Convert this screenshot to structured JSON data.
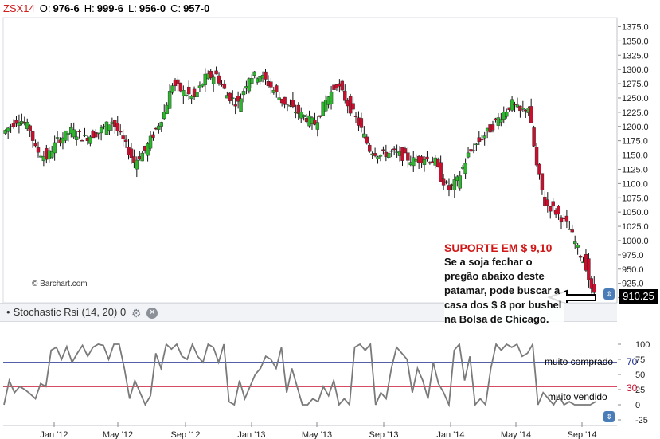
{
  "header": {
    "symbol": "ZSX14",
    "o_label": "O:",
    "o_value": "976-6",
    "h_label": "H:",
    "h_value": "999-6",
    "l_label": "L:",
    "l_value": "956-0",
    "c_label": "C:",
    "c_value": "957-0"
  },
  "oscillator": {
    "title": "Stochastic Rsi (14, 20) 0"
  },
  "watermark": "© Barchart.com",
  "last_price": "910.25",
  "annotation": {
    "title": "SUPORTE EM $ 9,10",
    "body": "Se a soja fechar o pregão abaixo deste patamar, pode buscar a casa dos $ 8 por bushel na Bolsa de Chicago."
  },
  "levels": {
    "overbought_label": "muito comprado",
    "oversold_label": "muito vendido",
    "overbought_value": "70",
    "oversold_value": "30"
  },
  "colors": {
    "up": "#2db52d",
    "down": "#c8102e",
    "overbought": "#1a2a8c",
    "oversold": "#c8102e",
    "stoch": "#7a7a7a"
  },
  "chart_data": [
    {
      "type": "candlestick",
      "title": "ZSX14",
      "x_tick_labels": [
        "Jan '12",
        "May '12",
        "Sep '12",
        "Jan '13",
        "May '13",
        "Sep '13",
        "Jan '14",
        "May '14",
        "Sep '14"
      ],
      "y_tick_labels": [
        "1375.0",
        "1350.0",
        "1325.0",
        "1300.0",
        "1275.0",
        "1250.0",
        "1225.0",
        "1200.0",
        "1175.0",
        "1150.0",
        "1125.0",
        "1100.0",
        "1075.0",
        "1050.0",
        "1025.0",
        "1000.0",
        "975.0",
        "950.0",
        "925.0",
        "900.0"
      ],
      "ylim": [
        891,
        1391
      ],
      "close_path": [
        [
          0,
          1188
        ],
        [
          6,
          1215
        ],
        [
          10,
          1195
        ],
        [
          12,
          1160
        ],
        [
          16,
          1145
        ],
        [
          20,
          1175
        ],
        [
          25,
          1192
        ],
        [
          30,
          1180
        ],
        [
          35,
          1190
        ],
        [
          40,
          1210
        ],
        [
          44,
          1175
        ],
        [
          48,
          1138
        ],
        [
          52,
          1158
        ],
        [
          56,
          1195
        ],
        [
          59,
          1225
        ],
        [
          62,
          1275
        ],
        [
          66,
          1260
        ],
        [
          70,
          1250
        ],
        [
          74,
          1285
        ],
        [
          78,
          1290
        ],
        [
          82,
          1255
        ],
        [
          86,
          1240
        ],
        [
          90,
          1288
        ],
        [
          94,
          1290
        ],
        [
          98,
          1270
        ],
        [
          102,
          1245
        ],
        [
          106,
          1230
        ],
        [
          110,
          1218
        ],
        [
          114,
          1205
        ],
        [
          118,
          1245
        ],
        [
          122,
          1275
        ],
        [
          126,
          1240
        ],
        [
          130,
          1205
        ],
        [
          134,
          1160
        ],
        [
          138,
          1150
        ],
        [
          142,
          1155
        ],
        [
          146,
          1148
        ],
        [
          150,
          1140
        ],
        [
          154,
          1145
        ],
        [
          158,
          1138
        ],
        [
          160,
          1110
        ],
        [
          163,
          1090
        ],
        [
          166,
          1105
        ],
        [
          170,
          1150
        ],
        [
          174,
          1175
        ],
        [
          178,
          1195
        ],
        [
          182,
          1220
        ],
        [
          186,
          1240
        ],
        [
          189,
          1225
        ],
        [
          192,
          1235
        ],
        [
          195,
          1130
        ],
        [
          198,
          1065
        ],
        [
          201,
          1055
        ],
        [
          204,
          1040
        ],
        [
          207,
          1020
        ],
        [
          210,
          985
        ],
        [
          213,
          955
        ],
        [
          215,
          910
        ]
      ],
      "last": 910.25,
      "annotation": "SUPORTE EM $ 9,10"
    },
    {
      "type": "line",
      "title": "Stochastic Rsi (14, 20) 0",
      "y_tick_labels": [
        "100",
        "75",
        "50",
        "25",
        "0",
        "-25"
      ],
      "ylim": [
        -25,
        100
      ],
      "reference_lines": [
        {
          "label": "muito comprado",
          "value": 70
        },
        {
          "label": "muito vendido",
          "value": 30
        }
      ],
      "values": [
        0,
        40,
        20,
        30,
        25,
        18,
        10,
        35,
        30,
        90,
        95,
        75,
        96,
        70,
        85,
        98,
        80,
        95,
        100,
        98,
        75,
        100,
        100,
        60,
        10,
        40,
        20,
        0,
        15,
        85,
        60,
        100,
        92,
        100,
        80,
        75,
        100,
        80,
        70,
        100,
        95,
        70,
        100,
        5,
        0,
        40,
        10,
        30,
        50,
        60,
        80,
        75,
        60,
        95,
        20,
        60,
        30,
        0,
        0,
        10,
        5,
        30,
        15,
        40,
        0,
        10,
        0,
        95,
        100,
        90,
        100,
        0,
        20,
        10,
        60,
        95,
        85,
        75,
        20,
        60,
        40,
        10,
        70,
        35,
        20,
        0,
        90,
        100,
        40,
        80,
        0,
        10,
        0,
        60,
        100,
        90,
        100,
        95,
        100,
        80,
        85,
        100,
        0,
        20,
        10,
        0,
        15,
        0,
        5,
        0,
        0,
        0,
        0,
        5
      ]
    }
  ]
}
